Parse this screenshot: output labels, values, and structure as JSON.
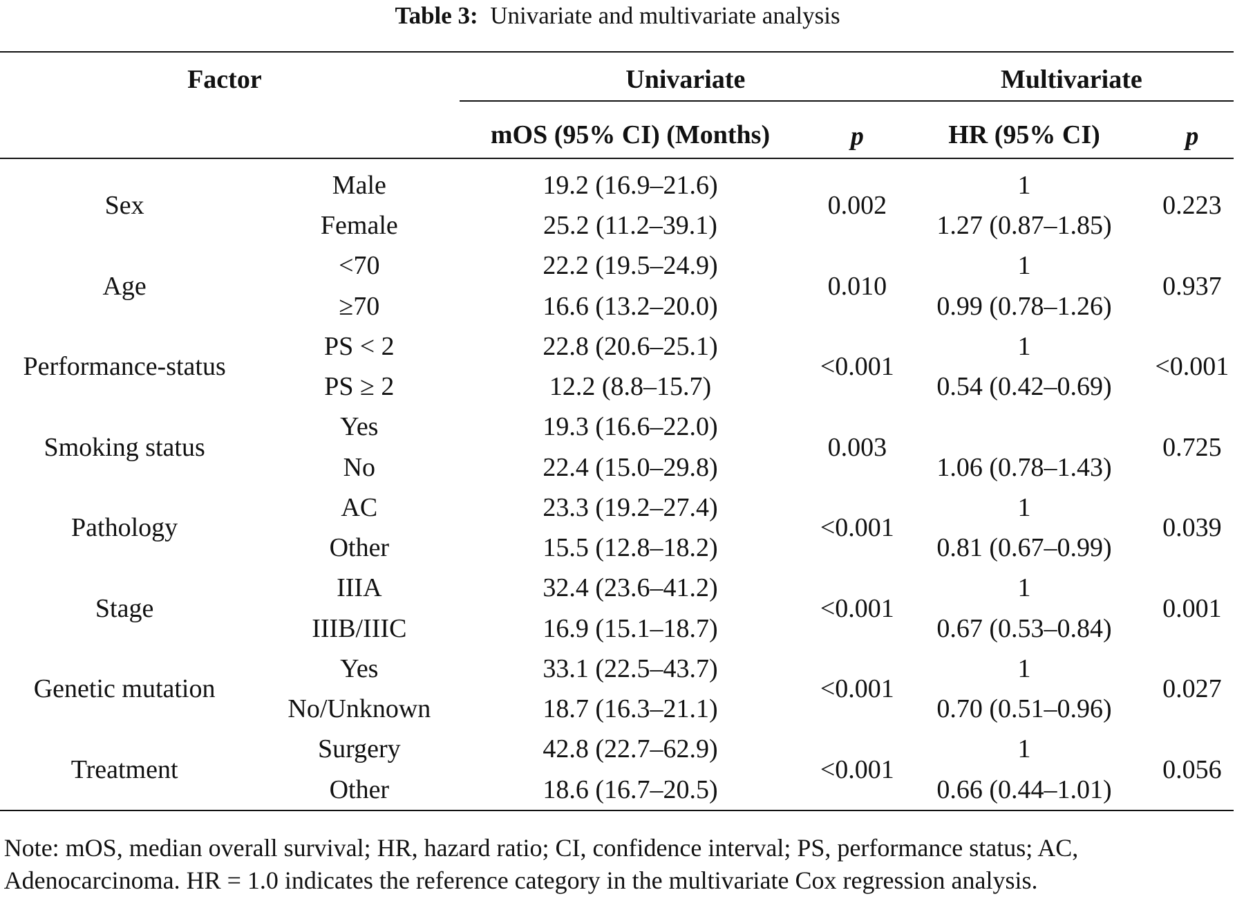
{
  "caption": {
    "label": "Table 3:",
    "text": "Univariate and multivariate analysis"
  },
  "header": {
    "factor": "Factor",
    "univariate": "Univariate",
    "multivariate": "Multivariate",
    "mos": "mOS (95% CI) (Months)",
    "p_uni": "p",
    "hr": "HR (95% CI)",
    "p_multi": "p"
  },
  "groups": [
    {
      "factor": "Sex",
      "p_uni": "0.002",
      "p_multi": "0.223",
      "levels": [
        {
          "label": "Male",
          "mos": "19.2 (16.9–21.6)",
          "hr": "1"
        },
        {
          "label": "Female",
          "mos": "25.2 (11.2–39.1)",
          "hr": "1.27 (0.87–1.85)"
        }
      ]
    },
    {
      "factor": "Age",
      "p_uni": "0.010",
      "p_multi": "0.937",
      "levels": [
        {
          "label": "<70",
          "mos": "22.2 (19.5–24.9)",
          "hr": "1"
        },
        {
          "label": "≥70",
          "mos": "16.6 (13.2–20.0)",
          "hr": "0.99 (0.78–1.26)"
        }
      ]
    },
    {
      "factor": "Performance-status",
      "p_uni": "<0.001",
      "p_multi": "<0.001",
      "levels": [
        {
          "label": "PS < 2",
          "mos": "22.8 (20.6–25.1)",
          "hr": "1"
        },
        {
          "label": "PS ≥ 2",
          "mos": "12.2 (8.8–15.7)",
          "hr": "0.54 (0.42–0.69)"
        }
      ]
    },
    {
      "factor": "Smoking status",
      "p_uni": "0.003",
      "p_multi": "0.725",
      "levels": [
        {
          "label": "Yes",
          "mos": "19.3 (16.6–22.0)"
        },
        {
          "label": "No",
          "mos": "22.4 (15.0–29.8)",
          "hr": "1.06 (0.78–1.43)"
        }
      ]
    },
    {
      "factor": "Pathology",
      "p_uni": "<0.001",
      "p_multi": "0.039",
      "levels": [
        {
          "label": "AC",
          "mos": "23.3 (19.2–27.4)",
          "hr": "1"
        },
        {
          "label": "Other",
          "mos": "15.5 (12.8–18.2)",
          "hr": "0.81 (0.67–0.99)"
        }
      ]
    },
    {
      "factor": "Stage",
      "p_uni": "<0.001",
      "p_multi": "0.001",
      "levels": [
        {
          "label": "IIIA",
          "mos": "32.4 (23.6–41.2)",
          "hr": "1"
        },
        {
          "label": "IIIB/IIIC",
          "mos": "16.9 (15.1–18.7)",
          "hr": "0.67 (0.53–0.84)"
        }
      ]
    },
    {
      "factor": "Genetic mutation",
      "p_uni": "<0.001",
      "p_multi": "0.027",
      "levels": [
        {
          "label": "Yes",
          "mos": "33.1 (22.5–43.7)",
          "hr": "1"
        },
        {
          "label": "No/Unknown",
          "mos": "18.7 (16.3–21.1)",
          "hr": "0.70 (0.51–0.96)"
        }
      ]
    },
    {
      "factor": "Treatment",
      "p_uni": "<0.001",
      "p_multi": "0.056",
      "levels": [
        {
          "label": "Surgery",
          "mos": "42.8 (22.7–62.9)",
          "hr": "1"
        },
        {
          "label": "Other",
          "mos": "18.6 (16.7–20.5)",
          "hr": "0.66 (0.44–1.01)"
        }
      ]
    }
  ],
  "note": [
    "Note: mOS, median overall survival; HR, hazard ratio; CI, confidence interval; PS, performance status; AC,",
    "Adenocarcinoma. HR = 1.0 indicates the reference category in the multivariate Cox regression analysis."
  ]
}
